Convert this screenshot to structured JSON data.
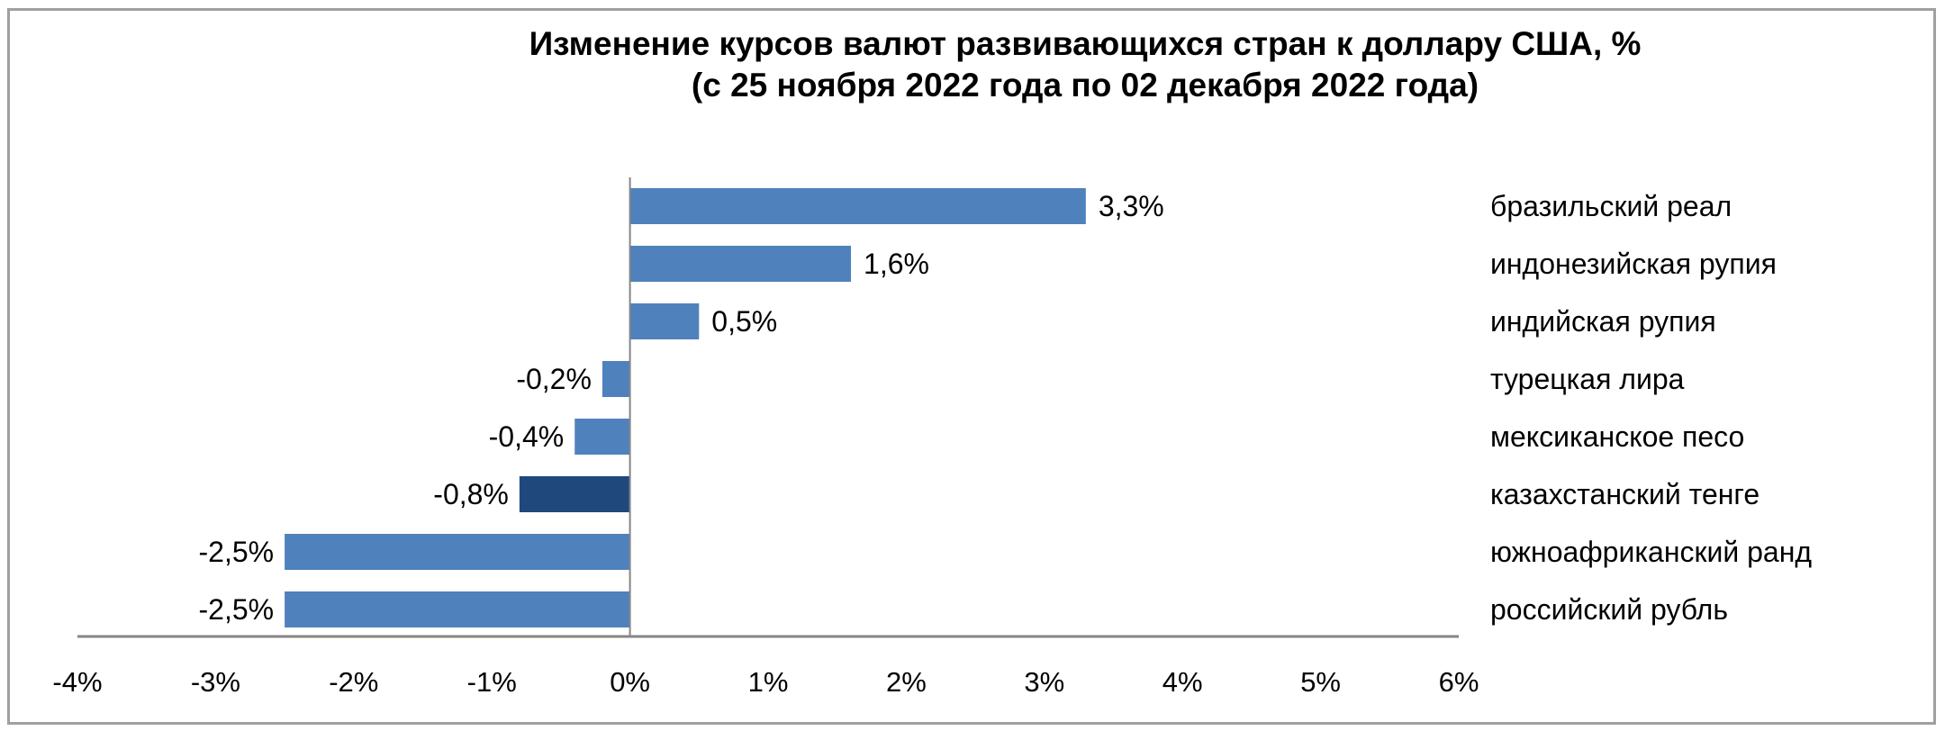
{
  "chart_data": {
    "type": "bar",
    "orientation": "horizontal",
    "title": "Изменение курсов валют развивающихся стран к доллару США, %",
    "subtitle": "(с 25 ноября 2022 года по 02 декабря 2022 года)",
    "xlabel": "",
    "ylabel": "",
    "categories": [
      "бразильский реал",
      "индонезийская рупия",
      "индийская рупия",
      "турецкая лира",
      "мексиканское песо",
      "казахстанский тенге",
      "южноафриканский ранд",
      "российский рубль"
    ],
    "values": [
      3.3,
      1.6,
      0.5,
      -0.2,
      -0.4,
      -0.8,
      -2.5,
      -2.5
    ],
    "data_labels": [
      "3,3%",
      "1,6%",
      "0,5%",
      "-0,2%",
      "-0,4%",
      "-0,8%",
      "-2,5%",
      "-2,5%"
    ],
    "highlighted": "казахстанский тенге",
    "xlim": [
      -4,
      6
    ],
    "x_ticks": [
      -4,
      -3,
      -2,
      -1,
      0,
      1,
      2,
      3,
      4,
      5,
      6
    ],
    "x_tick_labels": [
      "-4%",
      "-3%",
      "-2%",
      "-1%",
      "0%",
      "1%",
      "2%",
      "3%",
      "4%",
      "5%",
      "6%"
    ],
    "grid": false,
    "legend_position": "right (category labels)",
    "colors": {
      "bar": "#4F81BD",
      "highlight": "#1F497D",
      "axis": "#868686"
    }
  }
}
